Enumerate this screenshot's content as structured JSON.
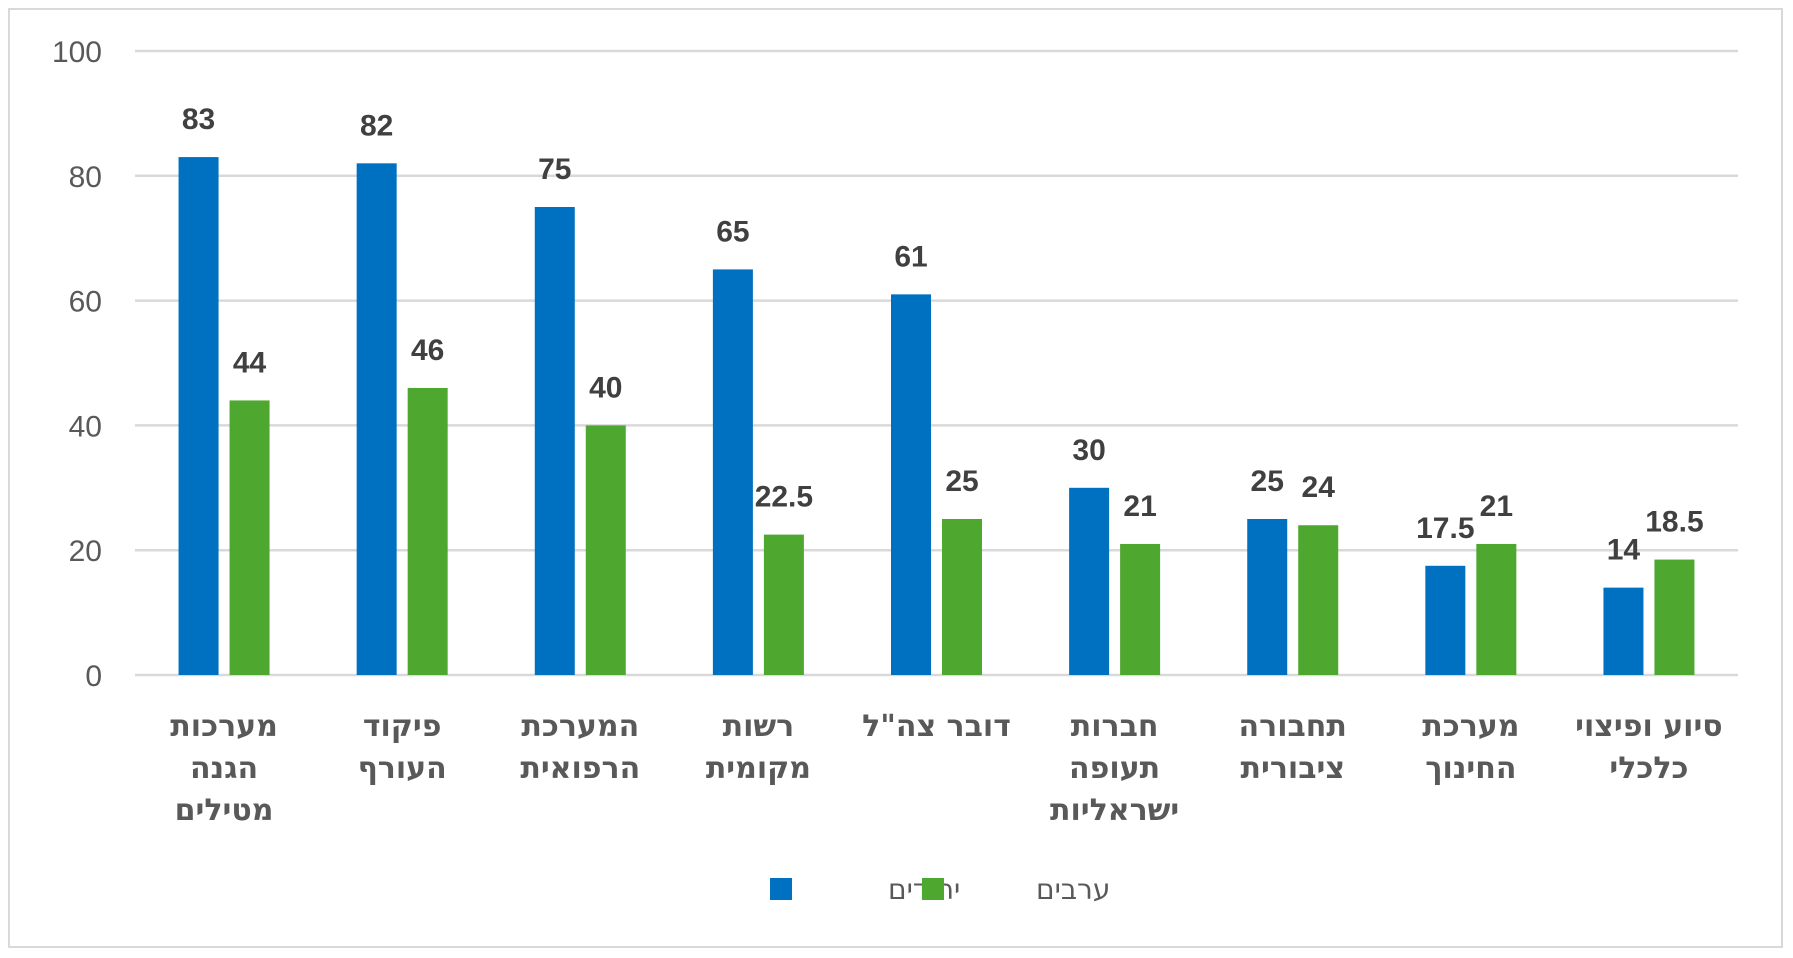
{
  "chart_data": {
    "type": "bar",
    "title": "",
    "xlabel": "",
    "ylabel": "",
    "ylim": [
      0,
      100
    ],
    "yticks": [
      "0",
      "20",
      "40",
      "60",
      "80",
      "100"
    ],
    "grid": true,
    "legend_position": "bottom",
    "categories": [
      [
        "מערכות",
        "הגנה",
        "מטילים"
      ],
      [
        "פיקוד",
        "העורף"
      ],
      [
        "המערכת",
        "הרפואית"
      ],
      [
        "רשות",
        "מקומית"
      ],
      [
        "דובר צה\"ל"
      ],
      [
        "חברות",
        "תעופה",
        "ישראליות"
      ],
      [
        "תחבורה",
        "ציבורית"
      ],
      [
        "מערכת",
        "החינוך"
      ],
      [
        "סיוע ופיצוי",
        "כלכלי"
      ]
    ],
    "series": [
      {
        "name": "יהודים",
        "color": "#0070C0",
        "values": [
          83,
          82,
          75,
          65,
          61,
          30,
          25,
          17.5,
          14
        ],
        "labels": [
          "83",
          "82",
          "75",
          "65",
          "61",
          "30",
          "25",
          "17.5",
          "14"
        ]
      },
      {
        "name": "ערבים",
        "color": "#4EA72E",
        "values": [
          44,
          46,
          40,
          22.5,
          25,
          21,
          24,
          21,
          18.5
        ],
        "labels": [
          "44",
          "46",
          "40",
          "22.5",
          "25",
          "21",
          "24",
          "21",
          "18.5"
        ]
      }
    ]
  }
}
